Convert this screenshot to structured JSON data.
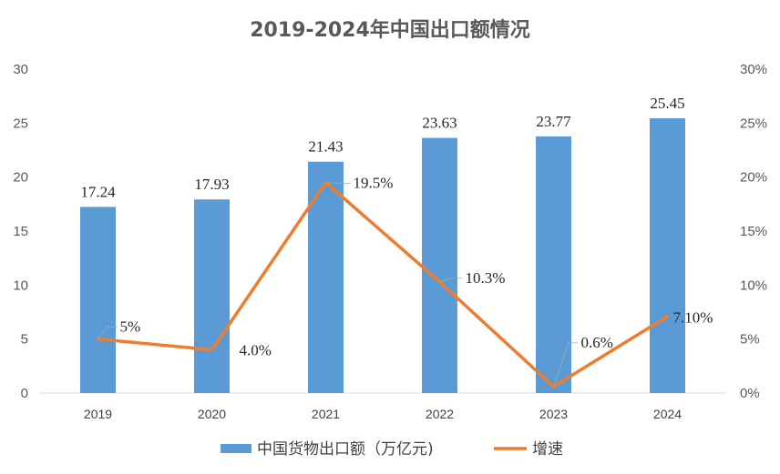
{
  "chart_data": {
    "type": "bar",
    "title": "2019-2024年中国出口额情况",
    "categories": [
      "2019",
      "2020",
      "2021",
      "2022",
      "2023",
      "2024"
    ],
    "series": [
      {
        "name": "中国货物出口额（万亿元)",
        "type": "bar",
        "axis": "left",
        "color": "#5B9BD5",
        "values": [
          17.24,
          17.93,
          21.43,
          23.63,
          23.77,
          25.45
        ],
        "labels": [
          "17.24",
          "17.93",
          "21.43",
          "23.63",
          "23.77",
          "25.45"
        ]
      },
      {
        "name": "增速",
        "type": "line",
        "axis": "right",
        "color": "#ED7D31",
        "values": [
          5.0,
          4.0,
          19.5,
          10.3,
          0.6,
          7.1
        ],
        "labels": [
          "5%",
          "4.0%",
          "19.5%",
          "10.3%",
          "0.6%",
          "7.10%"
        ]
      }
    ],
    "y_left": {
      "min": 0,
      "max": 30,
      "ticks": [
        "0",
        "5",
        "10",
        "15",
        "20",
        "25",
        "30"
      ]
    },
    "y_right": {
      "min": 0,
      "max": 30,
      "ticks": [
        "0%",
        "5%",
        "10%",
        "15%",
        "20%",
        "25%",
        "30%"
      ]
    },
    "grid": false,
    "legend_position": "bottom"
  }
}
